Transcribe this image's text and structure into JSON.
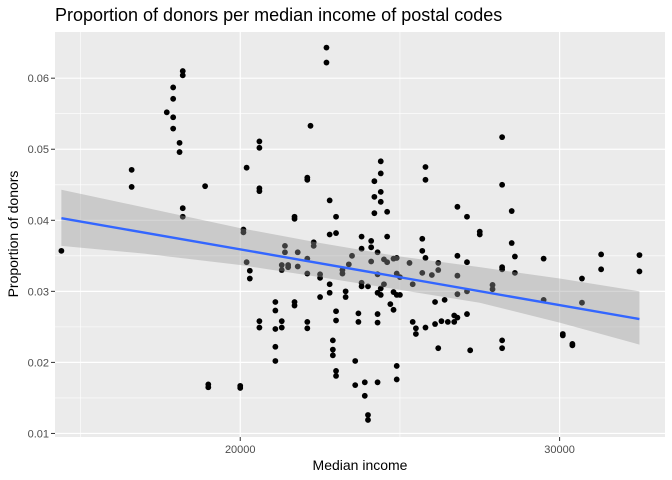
{
  "chart_data": {
    "type": "scatter",
    "title": "Proportion of donors per median income of postal codes",
    "xlabel": "Median income",
    "ylabel": "Proportion of donors",
    "xlim": [
      14200,
      33300
    ],
    "ylim": [
      0.0095,
      0.0665
    ],
    "x_ticks": [
      20000,
      30000
    ],
    "x_tick_labels": [
      "20000",
      "30000"
    ],
    "y_ticks": [
      0.01,
      0.02,
      0.03,
      0.04,
      0.05,
      0.06
    ],
    "y_tick_labels": [
      "0.01",
      "0.02",
      "0.03",
      "0.04",
      "0.05",
      "0.06"
    ],
    "grid": true,
    "colors": {
      "panel": "#ebebeb",
      "grid": "#ffffff",
      "point": "#000000",
      "line": "#3366ff",
      "ribbon": "#999999"
    },
    "points": [
      [
        14400,
        0.0357
      ],
      [
        16600,
        0.0471
      ],
      [
        16600,
        0.0447
      ],
      [
        17700,
        0.0552
      ],
      [
        17900,
        0.0587
      ],
      [
        17900,
        0.0571
      ],
      [
        17900,
        0.0545
      ],
      [
        17900,
        0.0529
      ],
      [
        18100,
        0.0509
      ],
      [
        18100,
        0.0496
      ],
      [
        18200,
        0.061
      ],
      [
        18200,
        0.0604
      ],
      [
        18200,
        0.0417
      ],
      [
        18200,
        0.0405
      ],
      [
        18900,
        0.0448
      ],
      [
        19000,
        0.0169
      ],
      [
        19000,
        0.0165
      ],
      [
        20000,
        0.0167
      ],
      [
        20000,
        0.0164
      ],
      [
        20100,
        0.0387
      ],
      [
        20100,
        0.0383
      ],
      [
        20200,
        0.0474
      ],
      [
        20200,
        0.0341
      ],
      [
        20300,
        0.0329
      ],
      [
        20300,
        0.0318
      ],
      [
        20600,
        0.0511
      ],
      [
        20600,
        0.0502
      ],
      [
        20600,
        0.0445
      ],
      [
        20600,
        0.0441
      ],
      [
        20600,
        0.0258
      ],
      [
        20600,
        0.0249
      ],
      [
        21100,
        0.0285
      ],
      [
        21100,
        0.0273
      ],
      [
        21100,
        0.0247
      ],
      [
        21100,
        0.0222
      ],
      [
        21100,
        0.0202
      ],
      [
        21300,
        0.0337
      ],
      [
        21300,
        0.033
      ],
      [
        21300,
        0.0258
      ],
      [
        21300,
        0.0249
      ],
      [
        21400,
        0.0364
      ],
      [
        21400,
        0.0355
      ],
      [
        21500,
        0.0337
      ],
      [
        21500,
        0.0334
      ],
      [
        21700,
        0.0405
      ],
      [
        21700,
        0.0402
      ],
      [
        21700,
        0.0285
      ],
      [
        21700,
        0.028
      ],
      [
        21800,
        0.0355
      ],
      [
        21800,
        0.0335
      ],
      [
        22100,
        0.046
      ],
      [
        22100,
        0.0457
      ],
      [
        22100,
        0.0346
      ],
      [
        22100,
        0.0325
      ],
      [
        22100,
        0.0257
      ],
      [
        22100,
        0.0248
      ],
      [
        22200,
        0.0533
      ],
      [
        22300,
        0.0369
      ],
      [
        22300,
        0.0364
      ],
      [
        22500,
        0.0324
      ],
      [
        22500,
        0.0319
      ],
      [
        22500,
        0.0292
      ],
      [
        22700,
        0.0643
      ],
      [
        22700,
        0.0622
      ],
      [
        22800,
        0.0428
      ],
      [
        22800,
        0.038
      ],
      [
        22800,
        0.031
      ],
      [
        22800,
        0.0298
      ],
      [
        22900,
        0.0231
      ],
      [
        22900,
        0.0218
      ],
      [
        22900,
        0.021
      ],
      [
        23000,
        0.0405
      ],
      [
        23000,
        0.0382
      ],
      [
        23000,
        0.0272
      ],
      [
        23000,
        0.0259
      ],
      [
        23000,
        0.0188
      ],
      [
        23000,
        0.0181
      ],
      [
        23200,
        0.033
      ],
      [
        23200,
        0.0325
      ],
      [
        23300,
        0.03
      ],
      [
        23300,
        0.0292
      ],
      [
        23400,
        0.0338
      ],
      [
        23500,
        0.035
      ],
      [
        23600,
        0.0202
      ],
      [
        23600,
        0.0168
      ],
      [
        23700,
        0.0269
      ],
      [
        23700,
        0.0257
      ],
      [
        23800,
        0.0377
      ],
      [
        23800,
        0.036
      ],
      [
        23800,
        0.0312
      ],
      [
        23800,
        0.0307
      ],
      [
        23900,
        0.0172
      ],
      [
        23900,
        0.0153
      ],
      [
        24000,
        0.0307
      ],
      [
        24000,
        0.0126
      ],
      [
        24000,
        0.0119
      ],
      [
        24100,
        0.0371
      ],
      [
        24100,
        0.0362
      ],
      [
        24100,
        0.0342
      ],
      [
        24200,
        0.0455
      ],
      [
        24200,
        0.0433
      ],
      [
        24200,
        0.041
      ],
      [
        24300,
        0.0355
      ],
      [
        24300,
        0.0324
      ],
      [
        24300,
        0.0298
      ],
      [
        24300,
        0.0268
      ],
      [
        24300,
        0.0256
      ],
      [
        24300,
        0.0172
      ],
      [
        24400,
        0.0483
      ],
      [
        24400,
        0.0466
      ],
      [
        24400,
        0.044
      ],
      [
        24400,
        0.0426
      ],
      [
        24400,
        0.0304
      ],
      [
        24400,
        0.0295
      ],
      [
        24500,
        0.0345
      ],
      [
        24500,
        0.031
      ],
      [
        24600,
        0.0412
      ],
      [
        24600,
        0.0377
      ],
      [
        24600,
        0.0341
      ],
      [
        24700,
        0.0282
      ],
      [
        24800,
        0.0346
      ],
      [
        24800,
        0.0299
      ],
      [
        24800,
        0.0274
      ],
      [
        24900,
        0.0347
      ],
      [
        24900,
        0.0325
      ],
      [
        24900,
        0.0295
      ],
      [
        24900,
        0.0195
      ],
      [
        24900,
        0.0176
      ],
      [
        25000,
        0.032
      ],
      [
        25000,
        0.0295
      ],
      [
        25300,
        0.034
      ],
      [
        25400,
        0.031
      ],
      [
        25400,
        0.0257
      ],
      [
        25500,
        0.0248
      ],
      [
        25500,
        0.024
      ],
      [
        25700,
        0.0357
      ],
      [
        25700,
        0.0374
      ],
      [
        25700,
        0.0326
      ],
      [
        25800,
        0.0475
      ],
      [
        25800,
        0.0457
      ],
      [
        25800,
        0.0347
      ],
      [
        25800,
        0.0249
      ],
      [
        26000,
        0.0323
      ],
      [
        26100,
        0.0285
      ],
      [
        26100,
        0.0254
      ],
      [
        26200,
        0.034
      ],
      [
        26200,
        0.033
      ],
      [
        26200,
        0.022
      ],
      [
        26300,
        0.0258
      ],
      [
        26400,
        0.0288
      ],
      [
        26500,
        0.0257
      ],
      [
        26700,
        0.0257
      ],
      [
        26700,
        0.0266
      ],
      [
        26800,
        0.0419
      ],
      [
        26800,
        0.035
      ],
      [
        26800,
        0.0322
      ],
      [
        26800,
        0.0296
      ],
      [
        26800,
        0.0263
      ],
      [
        27100,
        0.0405
      ],
      [
        27100,
        0.0341
      ],
      [
        27100,
        0.03
      ],
      [
        27100,
        0.0268
      ],
      [
        27200,
        0.0217
      ],
      [
        27500,
        0.0384
      ],
      [
        27500,
        0.038
      ],
      [
        27900,
        0.0309
      ],
      [
        27900,
        0.0303
      ],
      [
        28200,
        0.0517
      ],
      [
        28200,
        0.045
      ],
      [
        28200,
        0.0334
      ],
      [
        28200,
        0.0331
      ],
      [
        28200,
        0.0231
      ],
      [
        28200,
        0.022
      ],
      [
        28500,
        0.0413
      ],
      [
        28500,
        0.0368
      ],
      [
        28600,
        0.0349
      ],
      [
        28600,
        0.0326
      ],
      [
        29500,
        0.0346
      ],
      [
        29500,
        0.0288
      ],
      [
        30100,
        0.024
      ],
      [
        30100,
        0.0238
      ],
      [
        30400,
        0.0226
      ],
      [
        30400,
        0.0224
      ],
      [
        30700,
        0.0318
      ],
      [
        30700,
        0.0284
      ],
      [
        31300,
        0.0352
      ],
      [
        31300,
        0.0331
      ],
      [
        32500,
        0.0351
      ],
      [
        32500,
        0.0328
      ]
    ],
    "fit": {
      "method": "lm",
      "x": [
        14400,
        32500
      ],
      "y": [
        0.0403,
        0.0261
      ]
    },
    "ribbon": {
      "x": [
        14400,
        17000,
        20000,
        22500,
        25000,
        27500,
        30000,
        32500
      ],
      "lower": [
        0.0364,
        0.0353,
        0.0337,
        0.032,
        0.0302,
        0.0284,
        0.0256,
        0.0225
      ],
      "upper": [
        0.0443,
        0.0418,
        0.0389,
        0.0368,
        0.0349,
        0.0334,
        0.0318,
        0.03
      ]
    }
  }
}
